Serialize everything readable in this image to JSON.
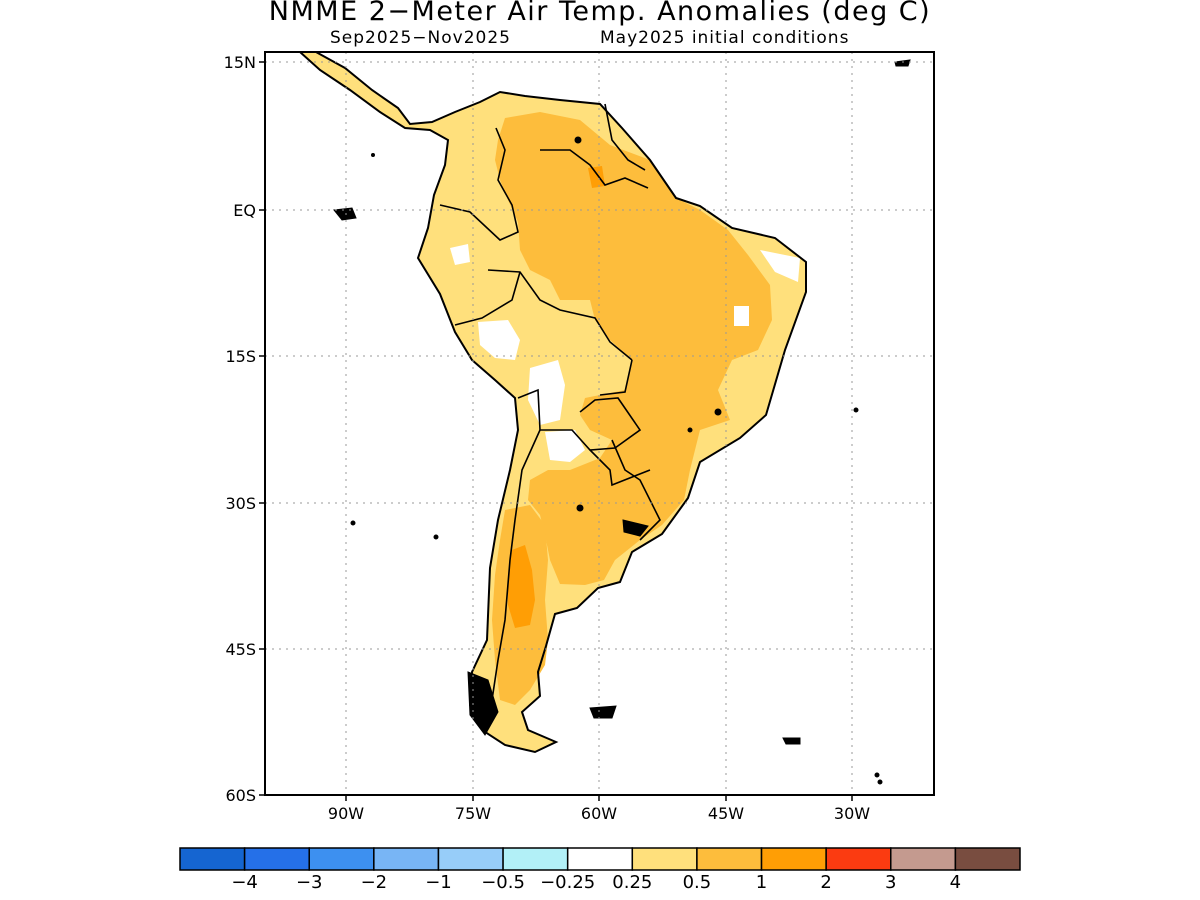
{
  "title": "NMME 2−Meter Air Temp. Anomalies (deg C)",
  "subtitle_period": "Sep2025−Nov2025",
  "subtitle_ic": "May2025 initial conditions",
  "lat_labels": [
    "15N",
    "EQ",
    "15S",
    "30S",
    "45S",
    "60S"
  ],
  "lon_labels": [
    "90W",
    "75W",
    "60W",
    "45W",
    "30W"
  ],
  "colorbar": {
    "colors": [
      "#1565d1",
      "#2570e8",
      "#3d90f0",
      "#78b5f5",
      "#97cdf9",
      "#b2f0f7",
      "#ffffff",
      "#ffe07c",
      "#fdbd3c",
      "#ff9e05",
      "#fb3b11",
      "#c49a8f",
      "#794d40"
    ],
    "labels": [
      "−4",
      "−3",
      "−2",
      "−1",
      "−0.5",
      "−0.25",
      "0.25",
      "0.5",
      "1",
      "2",
      "3",
      "4"
    ]
  }
}
